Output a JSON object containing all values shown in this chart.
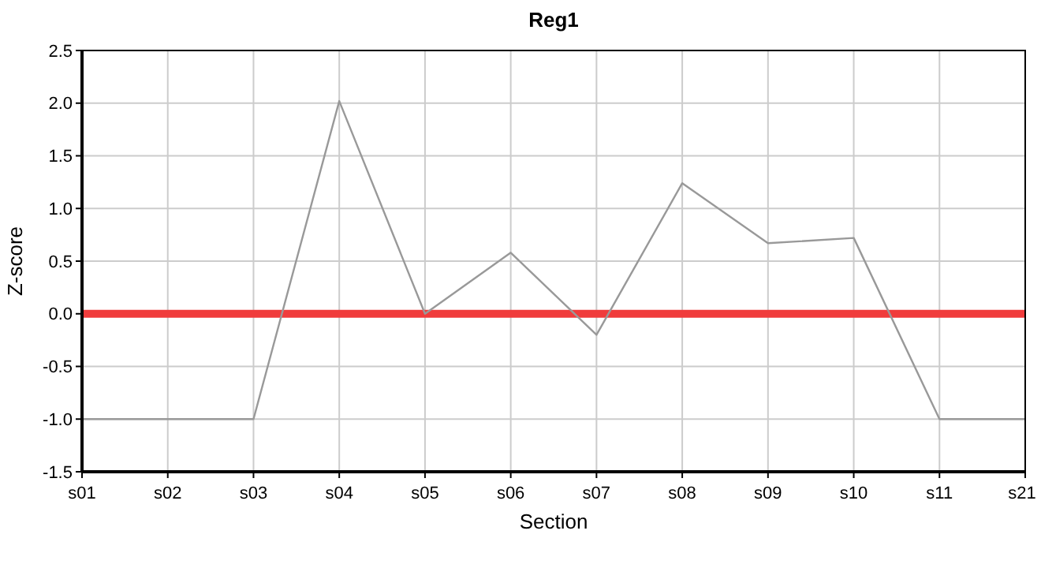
{
  "chart_data": {
    "type": "line",
    "title": "Reg1",
    "xlabel": "Section",
    "ylabel": "Z-score",
    "categories": [
      "s01",
      "s02",
      "s03",
      "s04",
      "s05",
      "s06",
      "s07",
      "s08",
      "s09",
      "s10",
      "s11",
      "s21"
    ],
    "series": [
      {
        "color": "#999999",
        "values": [
          -1,
          -1,
          -1,
          2.02,
          0,
          0.58,
          -0.2,
          1.24,
          0.67,
          0.72,
          -1,
          -1
        ]
      }
    ],
    "ylim": [
      -1.5,
      2.5
    ],
    "yticks": [
      {
        "value": -1.5,
        "label": "-1.5"
      },
      {
        "value": -1,
        "label": "-1.0"
      },
      {
        "value": -0.5,
        "label": "-0.5"
      },
      {
        "value": 0,
        "label": "0.0"
      },
      {
        "value": 0.5,
        "label": "0.5"
      },
      {
        "value": 1,
        "label": "1.0"
      },
      {
        "value": 1.5,
        "label": "1.5"
      },
      {
        "value": 2,
        "label": "2.0"
      },
      {
        "value": 2.5,
        "label": "2.5"
      }
    ],
    "ref_lines": [
      {
        "axis": "y",
        "value": 0,
        "color": "#f03c3c"
      }
    ],
    "grid": true,
    "marker": "none",
    "line_style": "solid"
  }
}
